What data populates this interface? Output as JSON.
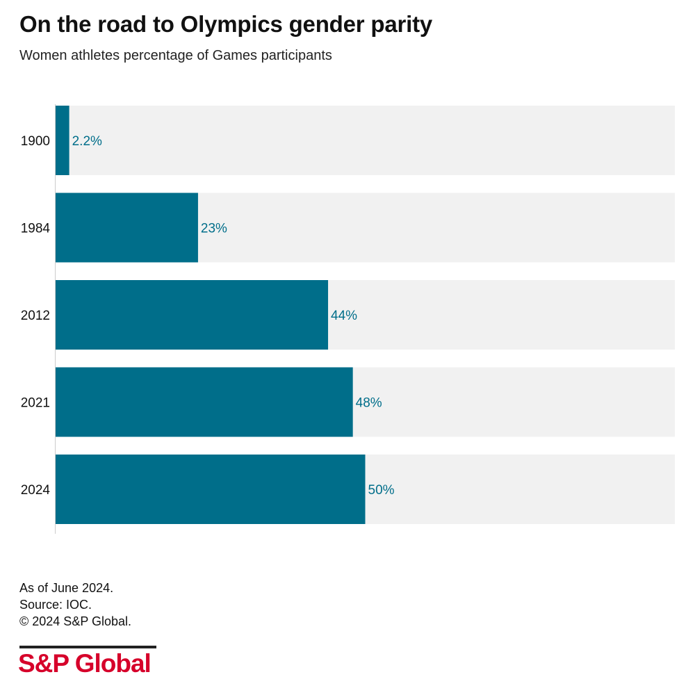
{
  "header": {
    "title": "On the road to Olympics gender parity",
    "subtitle": "Women athletes percentage of Games participants"
  },
  "chart_data": {
    "type": "bar",
    "orientation": "horizontal",
    "categories": [
      "1900",
      "1984",
      "2012",
      "2021",
      "2024"
    ],
    "values": [
      2.2,
      23,
      44,
      48,
      50
    ],
    "data_labels": [
      "2.2%",
      "23%",
      "44%",
      "48%",
      "50%"
    ],
    "xlim": [
      0,
      100
    ],
    "unit": "%",
    "grid": false,
    "legend": "none",
    "colors": {
      "bar": "#006e8a",
      "track": "#f1f1f1",
      "label": "#006e8a"
    }
  },
  "footer": {
    "notes": [
      "As of June 2024.",
      "Source: IOC.",
      "© 2024 S&P Global."
    ],
    "logo_text": "S&P Global",
    "logo_color": "#d6002a"
  }
}
